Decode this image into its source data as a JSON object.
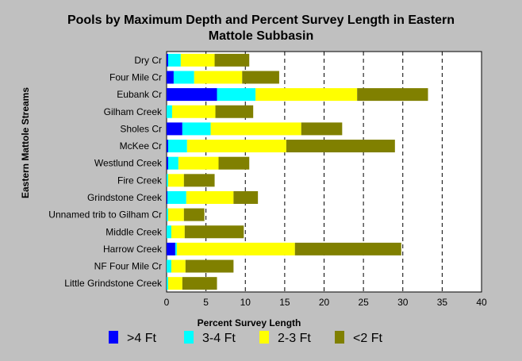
{
  "chart_data": {
    "type": "bar",
    "orientation": "horizontal",
    "stacked": true,
    "title_lines": [
      "Pools by Maximum Depth and Percent Survey Length in Eastern",
      "Mattole Subbasin"
    ],
    "xlabel": "Percent Survey Length",
    "ylabel": "Eastern Mattole Streams",
    "xlim": [
      0,
      40
    ],
    "xticks": [
      "0",
      "5",
      "10",
      "15",
      "20",
      "25",
      "30",
      "35",
      "40"
    ],
    "grid": "vertical dashed",
    "legend_position": "bottom",
    "categories": [
      "Dry Cr",
      "Four Mile Cr",
      "Eubank Cr",
      "Gilham Creek",
      "Sholes Cr",
      "McKee Cr",
      "Westlund Creek",
      "Fire Creek",
      "Grindstone Creek",
      "Unnamed trib to Gilham Cr",
      "Middle Creek",
      "Harrow Creek",
      "NF Four Mile Cr",
      "Little Grindstone Creek"
    ],
    "series": [
      {
        "name": ">4 Ft",
        "color": "#0000ff",
        "values": [
          0.2,
          0.9,
          6.4,
          0.0,
          2.0,
          0.2,
          0.2,
          0.0,
          0.1,
          0.0,
          0.0,
          1.1,
          0.0,
          0.0
        ]
      },
      {
        "name": "3-4 Ft",
        "color": "#00ffff",
        "values": [
          1.6,
          2.6,
          4.9,
          0.7,
          3.6,
          2.4,
          1.3,
          0.2,
          2.4,
          0.2,
          0.6,
          0.2,
          0.6,
          0.2
        ]
      },
      {
        "name": "2-3 Ft",
        "color": "#ffff00",
        "values": [
          4.3,
          6.1,
          12.9,
          5.5,
          11.5,
          12.6,
          5.1,
          2.0,
          6.0,
          2.0,
          1.7,
          15.0,
          1.8,
          1.8
        ]
      },
      {
        "name": "<2 Ft",
        "color": "#808000",
        "values": [
          4.4,
          4.7,
          9.0,
          4.8,
          5.2,
          13.8,
          3.9,
          3.9,
          3.1,
          2.6,
          7.5,
          13.5,
          6.1,
          4.4
        ]
      }
    ]
  }
}
